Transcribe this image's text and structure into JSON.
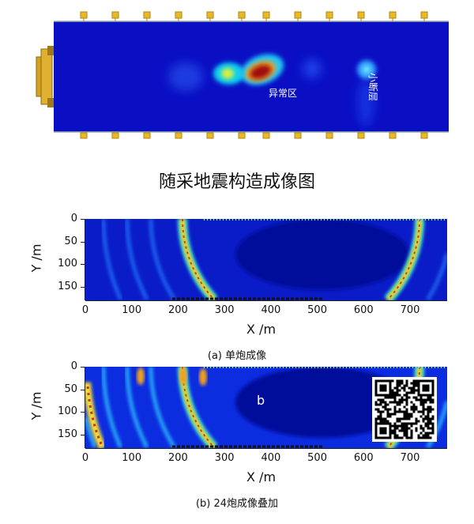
{
  "top_figure": {
    "title": "随采地震构造成像图",
    "labels": {
      "anomaly": "异常区",
      "fault": "小断层"
    },
    "colors": {
      "background": "#0a10c8",
      "sensor": "#e8b828",
      "machine": "#d4a020"
    }
  },
  "panels": [
    {
      "id": "a",
      "caption": "(a) 单炮成像",
      "xlabel": "X /m",
      "ylabel": "Y /m",
      "xticks": [
        "0",
        "100",
        "200",
        "300",
        "400",
        "500",
        "600",
        "700"
      ],
      "yticks": [
        "0",
        "50",
        "100",
        "150"
      ],
      "xlim": [
        0,
        780
      ],
      "ylim": [
        0,
        180
      ]
    },
    {
      "id": "b",
      "caption": "(b) 24炮成像叠加",
      "xlabel": "X /m",
      "ylabel": "Y /m",
      "xticks": [
        "0",
        "100",
        "200",
        "300",
        "400",
        "500",
        "600",
        "700"
      ],
      "yticks": [
        "0",
        "50",
        "100",
        "150"
      ],
      "xlim": [
        0,
        780
      ],
      "ylim": [
        0,
        180
      ],
      "annotation": "b"
    }
  ]
}
